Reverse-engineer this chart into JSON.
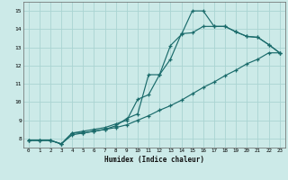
{
  "xlabel": "Humidex (Indice chaleur)",
  "bg_color": "#cceae8",
  "grid_color": "#aad4d2",
  "line_color": "#1a6b6b",
  "xlim": [
    -0.5,
    23.5
  ],
  "ylim": [
    7.5,
    15.5
  ],
  "xticks": [
    0,
    1,
    2,
    3,
    4,
    5,
    6,
    7,
    8,
    9,
    10,
    11,
    12,
    13,
    14,
    15,
    16,
    17,
    18,
    19,
    20,
    21,
    22,
    23
  ],
  "yticks": [
    8,
    9,
    10,
    11,
    12,
    13,
    14,
    15
  ],
  "line1_x": [
    0,
    1,
    2,
    3,
    4,
    5,
    6,
    7,
    8,
    9,
    10,
    11,
    12,
    13,
    14,
    15,
    16,
    17,
    18,
    19,
    20,
    21,
    22,
    23
  ],
  "line1_y": [
    7.9,
    7.9,
    7.9,
    7.7,
    8.3,
    8.3,
    8.4,
    8.5,
    8.7,
    9.1,
    9.35,
    11.5,
    11.5,
    13.1,
    13.7,
    15.0,
    15.0,
    14.15,
    14.15,
    13.85,
    13.6,
    13.55,
    13.15,
    12.7
  ],
  "line2_x": [
    0,
    1,
    2,
    3,
    4,
    5,
    6,
    7,
    8,
    9,
    10,
    11,
    12,
    13,
    14,
    15,
    16,
    17,
    18,
    19,
    20,
    21,
    22,
    23
  ],
  "line2_y": [
    7.9,
    7.9,
    7.9,
    7.7,
    8.3,
    8.4,
    8.5,
    8.6,
    8.8,
    9.0,
    10.15,
    10.4,
    11.5,
    12.35,
    13.75,
    13.8,
    14.15,
    14.15,
    14.15,
    13.85,
    13.6,
    13.55,
    13.15,
    12.7
  ],
  "line3_x": [
    0,
    1,
    2,
    3,
    4,
    5,
    6,
    7,
    8,
    9,
    10,
    11,
    12,
    13,
    14,
    15,
    16,
    17,
    18,
    19,
    20,
    21,
    22,
    23
  ],
  "line3_y": [
    7.9,
    7.9,
    7.9,
    7.7,
    8.2,
    8.3,
    8.4,
    8.5,
    8.6,
    8.75,
    9.0,
    9.25,
    9.55,
    9.8,
    10.1,
    10.45,
    10.8,
    11.1,
    11.45,
    11.75,
    12.1,
    12.35,
    12.7,
    12.7
  ]
}
